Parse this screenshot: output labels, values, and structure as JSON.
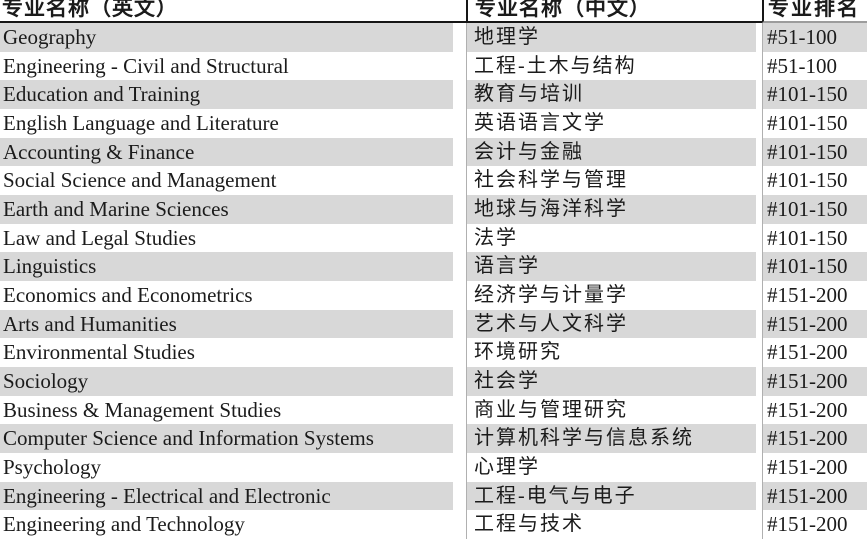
{
  "table": {
    "headers": {
      "en": "专业名称（英文）",
      "zh": "专业名称（中文）",
      "rank": "专业排名"
    },
    "rows": [
      {
        "en": "Geography",
        "zh": "地理学",
        "rank": "#51-100"
      },
      {
        "en": "Engineering - Civil and Structural",
        "zh": "工程-土木与结构",
        "rank": "#51-100"
      },
      {
        "en": "Education and Training",
        "zh": "教育与培训",
        "rank": "#101-150"
      },
      {
        "en": "English Language and Literature",
        "zh": "英语语言文学",
        "rank": "#101-150"
      },
      {
        "en": "Accounting & Finance",
        "zh": "会计与金融",
        "rank": "#101-150"
      },
      {
        "en": "Social Science and Management",
        "zh": "社会科学与管理",
        "rank": "#101-150"
      },
      {
        "en": "Earth and Marine Sciences",
        "zh": "地球与海洋科学",
        "rank": "#101-150"
      },
      {
        "en": "Law and Legal Studies",
        "zh": "法学",
        "rank": "#101-150"
      },
      {
        "en": "Linguistics",
        "zh": "语言学",
        "rank": "#101-150"
      },
      {
        "en": "Economics and Econometrics",
        "zh": "经济学与计量学",
        "rank": "#151-200"
      },
      {
        "en": "Arts and Humanities",
        "zh": "艺术与人文科学",
        "rank": "#151-200"
      },
      {
        "en": "Environmental Studies",
        "zh": "环境研究",
        "rank": "#151-200"
      },
      {
        "en": "Sociology",
        "zh": "社会学",
        "rank": "#151-200"
      },
      {
        "en": "Business & Management Studies",
        "zh": "商业与管理研究",
        "rank": "#151-200"
      },
      {
        "en": "Computer Science and Information Systems",
        "zh": "计算机科学与信息系统",
        "rank": "#151-200"
      },
      {
        "en": "Psychology",
        "zh": "心理学",
        "rank": "#151-200"
      },
      {
        "en": "Engineering - Electrical and Electronic",
        "zh": "工程-电气与电子",
        "rank": "#151-200"
      },
      {
        "en": "Engineering and Technology",
        "zh": "工程与技术",
        "rank": "#151-200"
      }
    ]
  },
  "colors": {
    "background": "#ffffff",
    "stripe": "#d8d8d8",
    "text": "#1b1b1b",
    "header_border": "#161616",
    "grid_line": "#b0b0b0"
  }
}
